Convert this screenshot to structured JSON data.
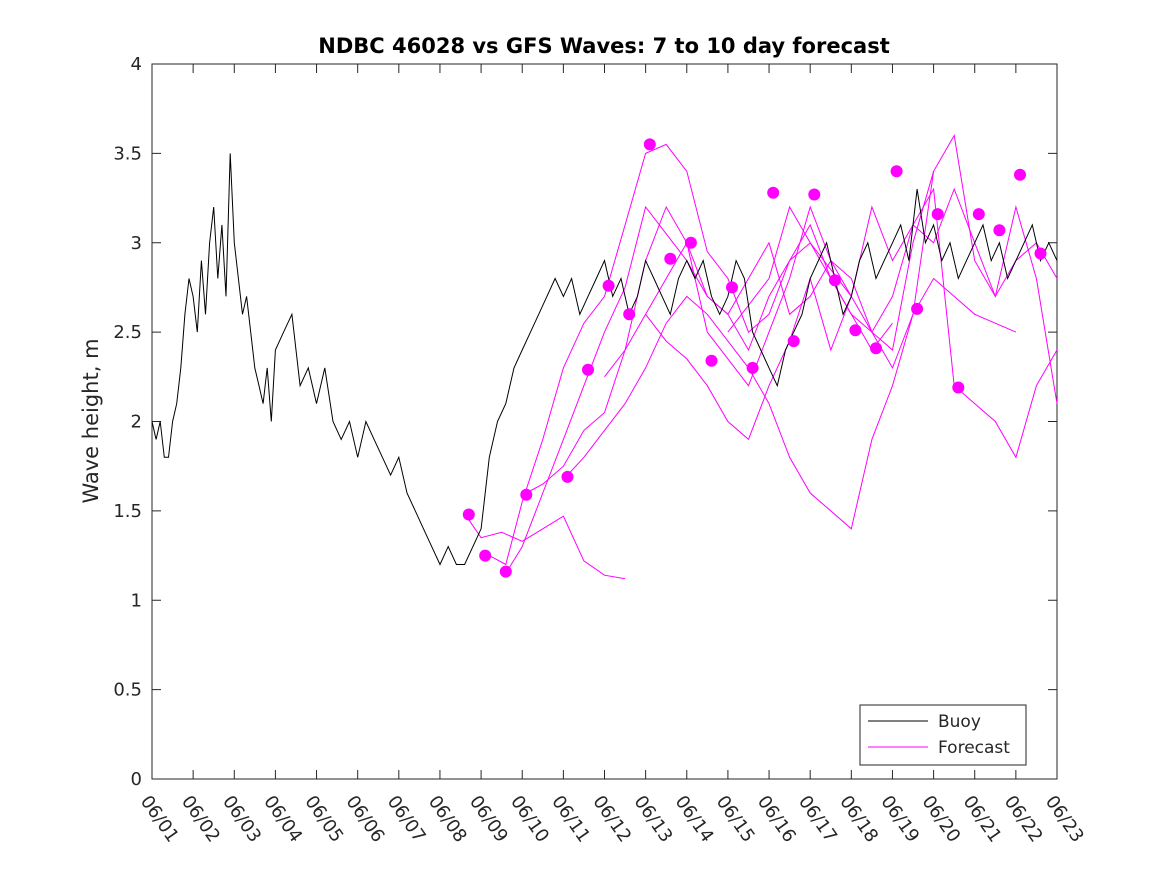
{
  "chart_data": {
    "type": "line",
    "title": "NDBC 46028 vs GFS Waves: 7 to 10 day forecast",
    "xlabel": "",
    "ylabel": "Wave height, m",
    "xlim": [
      "06/01",
      "06/23"
    ],
    "ylim": [
      0,
      4
    ],
    "x_ticks": [
      "06/01",
      "06/02",
      "06/03",
      "06/04",
      "06/05",
      "06/06",
      "06/07",
      "06/08",
      "06/09",
      "06/10",
      "06/11",
      "06/12",
      "06/13",
      "06/14",
      "06/15",
      "06/16",
      "06/17",
      "06/18",
      "06/19",
      "06/20",
      "06/21",
      "06/22",
      "06/23"
    ],
    "y_ticks": [
      "0",
      "0.5",
      "1",
      "1.5",
      "2",
      "2.5",
      "3",
      "3.5",
      "4"
    ],
    "legend": {
      "placement": "bottom-right",
      "entries": [
        "Buoy",
        "Forecast"
      ]
    },
    "colors": {
      "buoy": "#000000",
      "forecast": "#ff00ff"
    },
    "series": [
      {
        "name": "Buoy",
        "x": [
          0.0,
          0.1,
          0.2,
          0.3,
          0.4,
          0.5,
          0.6,
          0.7,
          0.8,
          0.9,
          1.0,
          1.1,
          1.2,
          1.3,
          1.4,
          1.5,
          1.6,
          1.7,
          1.8,
          1.9,
          2.0,
          2.1,
          2.2,
          2.3,
          2.4,
          2.5,
          2.6,
          2.7,
          2.8,
          2.9,
          3.0,
          3.2,
          3.4,
          3.6,
          3.8,
          4.0,
          4.2,
          4.4,
          4.6,
          4.8,
          5.0,
          5.2,
          5.4,
          5.6,
          5.8,
          6.0,
          6.2,
          6.4,
          6.6,
          6.8,
          7.0,
          7.2,
          7.4,
          7.6,
          7.8,
          8.0,
          8.2,
          8.4,
          8.6,
          8.8,
          9.0,
          9.2,
          9.4,
          9.6,
          9.8,
          10.0,
          10.2,
          10.4,
          10.6,
          10.8,
          11.0,
          11.2,
          11.4,
          11.6,
          11.8,
          12.0,
          12.2,
          12.4,
          12.6,
          12.8,
          13.0,
          13.2,
          13.4,
          13.6,
          13.8,
          14.0,
          14.2,
          14.4,
          14.6,
          14.8,
          15.0,
          15.2,
          15.4,
          15.6,
          15.8,
          16.0,
          16.2,
          16.4,
          16.6,
          16.8,
          17.0,
          17.2,
          17.4,
          17.6,
          17.8,
          18.0,
          18.2,
          18.4,
          18.6,
          18.8,
          19.0,
          19.2,
          19.4,
          19.6,
          19.8,
          20.0,
          20.2,
          20.4,
          20.6,
          20.8,
          21.0,
          21.2,
          21.4,
          21.6,
          21.8,
          22.0
        ],
        "values": [
          2.0,
          1.9,
          2.0,
          1.8,
          1.8,
          2.0,
          2.1,
          2.3,
          2.6,
          2.8,
          2.7,
          2.5,
          2.9,
          2.6,
          3.0,
          3.2,
          2.8,
          3.1,
          2.7,
          3.5,
          3.0,
          2.8,
          2.6,
          2.7,
          2.5,
          2.3,
          2.2,
          2.1,
          2.3,
          2.0,
          2.4,
          2.5,
          2.6,
          2.2,
          2.3,
          2.1,
          2.3,
          2.0,
          1.9,
          2.0,
          1.8,
          2.0,
          1.9,
          1.8,
          1.7,
          1.8,
          1.6,
          1.5,
          1.4,
          1.3,
          1.2,
          1.3,
          1.2,
          1.2,
          1.3,
          1.4,
          1.8,
          2.0,
          2.1,
          2.3,
          2.4,
          2.5,
          2.6,
          2.7,
          2.8,
          2.7,
          2.8,
          2.6,
          2.7,
          2.8,
          2.9,
          2.7,
          2.8,
          2.6,
          2.7,
          2.9,
          2.8,
          2.7,
          2.6,
          2.8,
          2.9,
          2.8,
          2.9,
          2.7,
          2.6,
          2.7,
          2.9,
          2.8,
          2.5,
          2.4,
          2.3,
          2.2,
          2.4,
          2.5,
          2.6,
          2.8,
          2.9,
          3.0,
          2.8,
          2.6,
          2.7,
          2.9,
          3.0,
          2.8,
          2.9,
          3.0,
          3.1,
          2.9,
          3.3,
          3.0,
          3.1,
          2.9,
          3.0,
          2.8,
          2.9,
          3.0,
          3.1,
          2.9,
          3.0,
          2.8,
          2.9,
          3.0,
          3.1,
          2.9,
          3.0,
          2.9
        ]
      },
      {
        "name": "Forecast",
        "lines": [
          {
            "x": [
              7.7,
              8.0,
              8.5,
              9.0,
              9.5,
              10.0,
              10.5,
              11.0,
              11.5
            ],
            "values": [
              1.45,
              1.35,
              1.38,
              1.33,
              1.4,
              1.47,
              1.22,
              1.14,
              1.12
            ]
          },
          {
            "x": [
              8.2,
              8.6,
              9.0,
              9.5,
              10.0,
              10.5,
              11.0,
              11.5,
              12.0,
              12.5,
              13.0,
              13.5,
              14.0,
              14.5,
              15.0,
              15.5,
              16.0,
              16.5,
              17.0
            ],
            "values": [
              1.25,
              1.2,
              1.55,
              1.9,
              2.3,
              2.55,
              2.7,
              3.1,
              3.5,
              3.55,
              3.4,
              2.95,
              2.8,
              2.5,
              2.6,
              2.9,
              3.0,
              2.85,
              2.7
            ]
          },
          {
            "x": [
              8.6,
              9.0,
              9.5,
              10.0,
              10.5,
              11.0,
              11.5,
              12.0,
              12.5,
              13.0,
              13.5,
              14.0,
              14.5,
              15.0,
              15.5,
              16.0,
              16.5,
              17.0,
              17.5,
              18.0
            ],
            "values": [
              1.15,
              1.3,
              1.6,
              1.9,
              2.2,
              2.5,
              2.75,
              3.2,
              3.05,
              2.9,
              2.7,
              2.6,
              2.4,
              2.7,
              2.9,
              3.1,
              2.8,
              2.6,
              2.4,
              2.55
            ]
          },
          {
            "x": [
              9.1,
              9.5,
              10.0,
              10.5,
              11.0,
              11.5,
              12.0,
              12.5,
              13.0,
              13.5,
              14.0,
              14.5,
              15.0,
              15.5,
              16.0,
              16.5,
              17.0,
              17.5,
              18.0,
              18.5,
              19.0
            ],
            "values": [
              1.6,
              1.65,
              1.75,
              1.95,
              2.05,
              2.4,
              2.9,
              3.2,
              3.0,
              2.7,
              2.6,
              2.8,
              3.0,
              2.6,
              2.7,
              2.9,
              2.8,
              2.5,
              2.4,
              3.0,
              3.4
            ]
          },
          {
            "x": [
              10.1,
              10.5,
              11.0,
              11.5,
              12.0,
              12.5,
              13.0,
              13.5,
              14.0,
              14.5,
              15.0,
              15.5,
              16.0,
              16.5,
              17.0,
              17.5,
              18.0,
              18.5,
              19.0,
              19.5,
              20.0,
              20.5,
              21.0
            ],
            "values": [
              1.7,
              1.8,
              1.95,
              2.1,
              2.3,
              2.55,
              2.7,
              2.6,
              2.45,
              2.3,
              2.1,
              1.8,
              1.6,
              1.5,
              1.4,
              1.9,
              2.2,
              2.6,
              2.8,
              2.7,
              2.6,
              2.55,
              2.5
            ]
          },
          {
            "x": [
              11.0,
              11.5,
              12.0,
              12.5,
              13.0,
              13.5,
              14.0,
              14.5,
              15.0,
              15.5,
              16.0,
              16.5,
              17.0,
              17.5,
              18.0,
              18.5,
              19.0,
              19.5,
              20.0,
              20.5,
              21.0,
              21.5,
              22.0
            ],
            "values": [
              2.25,
              2.4,
              2.6,
              2.8,
              3.0,
              2.5,
              2.35,
              2.2,
              2.5,
              2.8,
              3.2,
              2.9,
              2.7,
              2.5,
              2.3,
              2.6,
              3.4,
              3.6,
              2.9,
              2.7,
              3.2,
              2.8,
              2.1
            ]
          },
          {
            "x": [
              12.0,
              12.5,
              13.0,
              13.5,
              14.0,
              14.5,
              15.0,
              15.5,
              16.0,
              16.5,
              17.0,
              17.5,
              18.0,
              18.5,
              19.0,
              19.5,
              20.0,
              20.5,
              21.0,
              21.5,
              22.0
            ],
            "values": [
              2.6,
              2.45,
              2.35,
              2.2,
              2.0,
              1.9,
              2.2,
              2.45,
              2.8,
              2.4,
              2.7,
              3.2,
              2.9,
              3.1,
              3.0,
              3.3,
              3.0,
              2.7,
              2.9,
              3.0,
              2.8
            ]
          },
          {
            "x": [
              14.0,
              14.5,
              15.0,
              15.5,
              16.0,
              16.5,
              17.0,
              17.5,
              18.0,
              18.5,
              19.0,
              19.5,
              20.0,
              20.5,
              21.0,
              21.5,
              22.0
            ],
            "values": [
              2.5,
              2.65,
              2.8,
              3.2,
              3.0,
              2.8,
              2.6,
              2.5,
              2.7,
              3.1,
              3.3,
              2.2,
              2.1,
              2.0,
              1.8,
              2.2,
              2.4
            ]
          }
        ]
      }
    ],
    "forecast_markers": {
      "x": [
        7.7,
        8.1,
        8.6,
        9.1,
        10.1,
        10.6,
        11.1,
        11.6,
        12.1,
        12.6,
        13.1,
        13.6,
        14.1,
        14.6,
        15.1,
        15.6,
        16.1,
        16.6,
        17.1,
        17.6,
        18.1,
        18.6,
        19.1,
        19.6,
        20.1,
        20.6,
        21.1,
        21.6
      ],
      "values": [
        1.48,
        1.25,
        1.16,
        1.59,
        1.69,
        2.29,
        2.76,
        2.6,
        3.55,
        2.91,
        3.0,
        2.34,
        2.75,
        2.3,
        3.28,
        2.45,
        3.27,
        2.79,
        2.51,
        2.41,
        3.4,
        2.63,
        3.16,
        2.19,
        3.16,
        3.07,
        3.38,
        2.94
      ]
    }
  }
}
